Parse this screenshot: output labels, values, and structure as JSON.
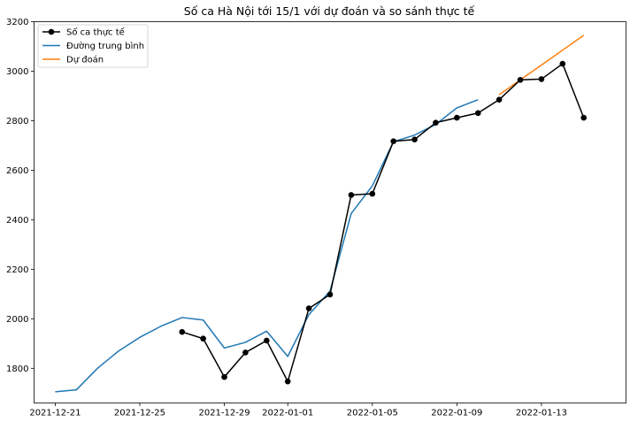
{
  "chart_data": {
    "type": "line",
    "title": "Số ca Hà Nội tới 15/1 với dự đoán và so sánh thực tế",
    "xlabel": "",
    "ylabel": "",
    "x_ticks": [
      "2021-12-21",
      "2021-12-25",
      "2021-12-29",
      "2022-01-01",
      "2022-01-05",
      "2022-01-09",
      "2022-01-13"
    ],
    "y_ticks": [
      1800,
      2000,
      2200,
      2400,
      2600,
      2800,
      3000,
      3200
    ],
    "xlim": [
      "2021-12-20",
      "2022-01-17"
    ],
    "ylim": [
      1660,
      3200
    ],
    "grid": false,
    "legend_position": "top-left",
    "series": [
      {
        "name": "Số ca thực tế",
        "color": "#000000",
        "marker": "circle",
        "x": [
          "2021-12-27",
          "2021-12-28",
          "2021-12-29",
          "2021-12-30",
          "2021-12-31",
          "2022-01-01",
          "2022-01-02",
          "2022-01-03",
          "2022-01-04",
          "2022-01-05",
          "2022-01-06",
          "2022-01-07",
          "2022-01-08",
          "2022-01-09",
          "2022-01-10",
          "2022-01-11",
          "2022-01-12",
          "2022-01-13",
          "2022-01-14",
          "2022-01-15"
        ],
        "y": [
          1947,
          1920,
          1765,
          1864,
          1912,
          1747,
          2042,
          2098,
          2500,
          2505,
          2717,
          2724,
          2792,
          2812,
          2831,
          2885,
          2965,
          2968,
          3030,
          2812
        ]
      },
      {
        "name": "Đường trung bình",
        "color": "#1f77b4",
        "marker": "none",
        "x": [
          "2021-12-21",
          "2021-12-22",
          "2021-12-23",
          "2021-12-24",
          "2021-12-25",
          "2021-12-26",
          "2021-12-27",
          "2021-12-28",
          "2021-12-29",
          "2021-12-30",
          "2021-12-31",
          "2022-01-01",
          "2022-01-02",
          "2022-01-03",
          "2022-01-04",
          "2022-01-05",
          "2022-01-06",
          "2022-01-07",
          "2022-01-08",
          "2022-01-09",
          "2022-01-10"
        ],
        "y": [
          1705,
          1713,
          1800,
          1870,
          1925,
          1970,
          2005,
          1995,
          1882,
          1905,
          1950,
          1848,
          2017,
          2112,
          2425,
          2537,
          2715,
          2742,
          2785,
          2852,
          2885
        ]
      },
      {
        "name": "Dự đoán",
        "color": "#ff7f0e",
        "marker": "none",
        "x": [
          "2022-01-11",
          "2022-01-12",
          "2022-01-13",
          "2022-01-14",
          "2022-01-15"
        ],
        "y": [
          2905,
          2965,
          3025,
          3085,
          3145
        ]
      }
    ]
  }
}
